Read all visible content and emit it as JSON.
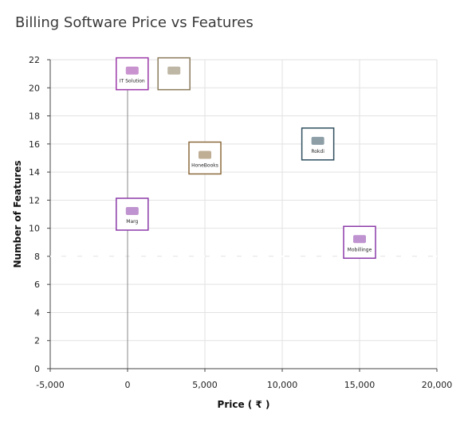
{
  "title": "Billing Software Price vs Features",
  "chart_data": {
    "type": "scatter",
    "title": "Billing Software Price vs Features",
    "xlabel": "Price ( ₹ )",
    "ylabel": "Number of Features",
    "xlim": [
      -5000,
      20000
    ],
    "ylim": [
      0,
      22
    ],
    "x_ticks": [
      -5000,
      0,
      5000,
      10000,
      15000,
      20000
    ],
    "x_tick_labels": [
      "-5,000",
      "0",
      "5,000",
      "10,000",
      "15,000",
      "20,000"
    ],
    "y_ticks": [
      0,
      2,
      4,
      6,
      8,
      10,
      12,
      14,
      16,
      18,
      20,
      22
    ],
    "y_tick_labels": [
      "0",
      "2",
      "4",
      "6",
      "8",
      "10",
      "12",
      "14",
      "16",
      "18",
      "20",
      "22"
    ],
    "grid": true,
    "reference_line_y": 8,
    "points": [
      {
        "x": 300,
        "y": 21,
        "color": "#9c3aa8",
        "label": "IT Solution"
      },
      {
        "x": 3000,
        "y": 21,
        "color": "#8b7b5b",
        "label": ""
      },
      {
        "x": 5000,
        "y": 15,
        "color": "#8b6a3c",
        "label": "HoneBooks"
      },
      {
        "x": 12300,
        "y": 16,
        "color": "#2f4f5f",
        "label": "Rokdi"
      },
      {
        "x": 300,
        "y": 11,
        "color": "#8b3aa8",
        "label": "Marg"
      },
      {
        "x": 15000,
        "y": 9,
        "color": "#8b3aa8",
        "label": "Mobillinge"
      }
    ]
  }
}
